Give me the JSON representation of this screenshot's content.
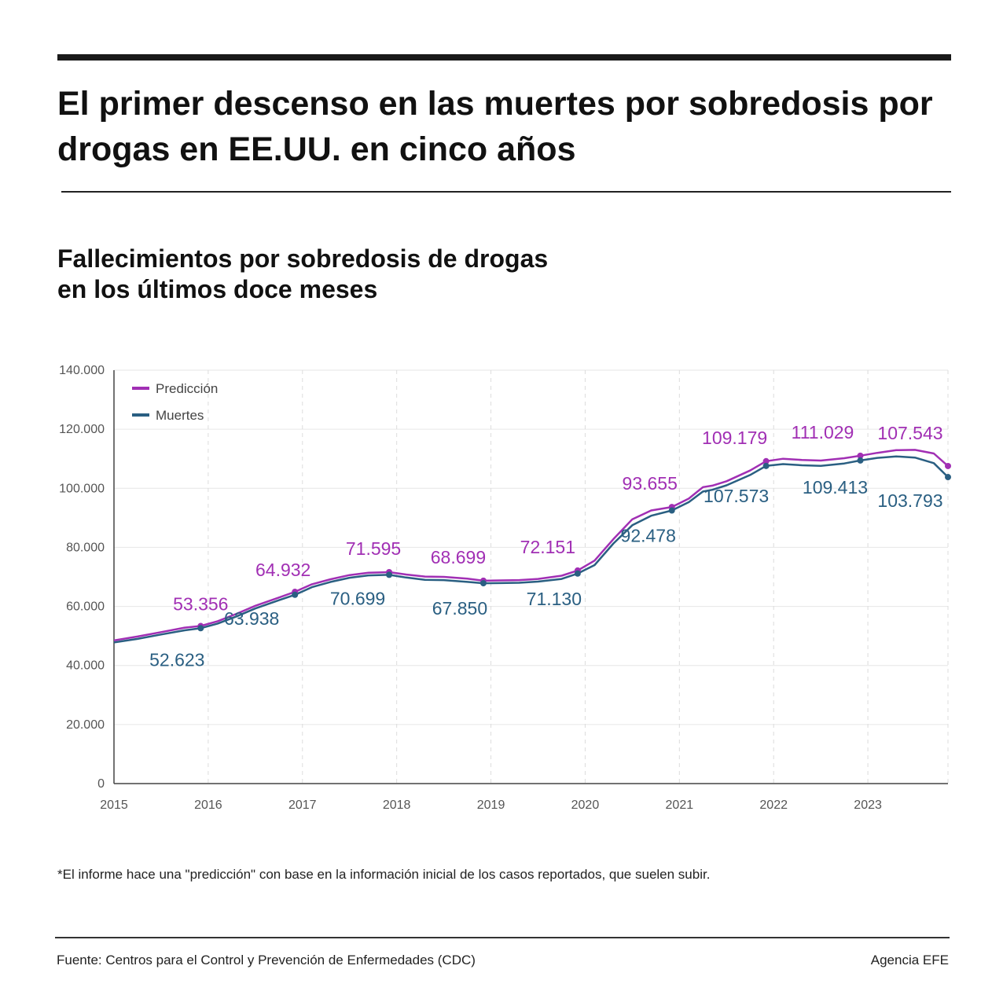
{
  "header": {
    "title": "El primer descenso en las muertes por sobredosis por drogas en EE.UU. en cinco años"
  },
  "chart_title": {
    "line1": "Fallecimientos por sobredosis de drogas",
    "line2": "en los últimos doce meses"
  },
  "chart_data": {
    "type": "line",
    "ylim": [
      0,
      140000
    ],
    "xlim": [
      2015,
      2023.85
    ],
    "y_ticks": [
      0,
      20000,
      40000,
      60000,
      80000,
      100000,
      120000,
      140000
    ],
    "y_tick_labels": [
      "0",
      "20.000",
      "40.000",
      "60.000",
      "80.000",
      "100.000",
      "120.000",
      "140.000"
    ],
    "x_ticks": [
      2015,
      2016,
      2017,
      2018,
      2019,
      2020,
      2021,
      2022,
      2023
    ],
    "x_tick_labels": [
      "2015",
      "2016",
      "2017",
      "2018",
      "2019",
      "2020",
      "2021",
      "2022",
      "2023"
    ],
    "grid": true,
    "legend_position": "top-left",
    "series": [
      {
        "name": "Predicción",
        "color": "#a12fb4",
        "x": [
          2015.0,
          2015.25,
          2015.5,
          2015.75,
          2015.92,
          2016.1,
          2016.3,
          2016.5,
          2016.75,
          2016.92,
          2017.1,
          2017.3,
          2017.5,
          2017.7,
          2017.92,
          2018.1,
          2018.3,
          2018.5,
          2018.75,
          2018.92,
          2019.1,
          2019.3,
          2019.5,
          2019.75,
          2019.92,
          2020.1,
          2020.3,
          2020.5,
          2020.7,
          2020.92,
          2021.1,
          2021.25,
          2021.35,
          2021.5,
          2021.75,
          2021.92,
          2022.1,
          2022.3,
          2022.5,
          2022.75,
          2022.92,
          2023.1,
          2023.3,
          2023.5,
          2023.7,
          2023.85
        ],
        "values": [
          48500,
          49800,
          51300,
          52800,
          53356,
          55000,
          57500,
          60200,
          63000,
          64932,
          67500,
          69200,
          70600,
          71400,
          71595,
          70800,
          70100,
          70000,
          69400,
          68699,
          68800,
          68900,
          69300,
          70400,
          72151,
          75500,
          82800,
          89500,
          92500,
          93655,
          96500,
          100400,
          100900,
          102400,
          106000,
          109179,
          110000,
          109600,
          109400,
          110200,
          111029,
          112000,
          112900,
          113000,
          111800,
          107543
        ]
      },
      {
        "name": "Muertes",
        "color": "#2a5f82",
        "x": [
          2015.0,
          2015.25,
          2015.5,
          2015.75,
          2015.92,
          2016.1,
          2016.3,
          2016.5,
          2016.75,
          2016.92,
          2017.1,
          2017.3,
          2017.5,
          2017.7,
          2017.92,
          2018.1,
          2018.3,
          2018.5,
          2018.75,
          2018.92,
          2019.1,
          2019.3,
          2019.5,
          2019.75,
          2019.92,
          2020.1,
          2020.3,
          2020.5,
          2020.7,
          2020.92,
          2021.1,
          2021.25,
          2021.35,
          2021.5,
          2021.75,
          2021.92,
          2022.1,
          2022.3,
          2022.5,
          2022.75,
          2022.92,
          2023.1,
          2023.3,
          2023.5,
          2023.7,
          2023.85
        ],
        "values": [
          47800,
          49000,
          50500,
          51900,
          52623,
          54200,
          56600,
          59300,
          62100,
          63938,
          66500,
          68300,
          69700,
          70500,
          70699,
          69800,
          69000,
          68900,
          68300,
          67850,
          67900,
          68000,
          68400,
          69300,
          71130,
          74000,
          81300,
          87500,
          90700,
          92478,
          95300,
          98900,
          99500,
          101000,
          104500,
          107573,
          108200,
          107800,
          107600,
          108400,
          109413,
          110300,
          110800,
          110400,
          108500,
          103793
        ]
      }
    ],
    "annotations": {
      "Predicción": [
        {
          "x": 2015.92,
          "y": 53356,
          "label": "53.356"
        },
        {
          "x": 2016.92,
          "y": 64932,
          "label": "64.932"
        },
        {
          "x": 2017.92,
          "y": 71595,
          "label": "71.595"
        },
        {
          "x": 2018.92,
          "y": 68699,
          "label": "68.699"
        },
        {
          "x": 2019.92,
          "y": 72151,
          "label": "72.151"
        },
        {
          "x": 2020.92,
          "y": 93655,
          "label": "93.655"
        },
        {
          "x": 2021.92,
          "y": 109179,
          "label": "109.179"
        },
        {
          "x": 2022.92,
          "y": 111029,
          "label": "111.029"
        },
        {
          "x": 2023.85,
          "y": 107543,
          "label": "107.543"
        }
      ],
      "Muertes": [
        {
          "x": 2015.92,
          "y": 52623,
          "label": "52.623"
        },
        {
          "x": 2016.92,
          "y": 63938,
          "label": "63.938"
        },
        {
          "x": 2017.92,
          "y": 70699,
          "label": "70.699"
        },
        {
          "x": 2018.92,
          "y": 67850,
          "label": "67.850"
        },
        {
          "x": 2019.92,
          "y": 71130,
          "label": "71.130"
        },
        {
          "x": 2020.92,
          "y": 92478,
          "label": "92.478"
        },
        {
          "x": 2021.92,
          "y": 107573,
          "label": "107.573"
        },
        {
          "x": 2022.92,
          "y": 109413,
          "label": "109.413"
        },
        {
          "x": 2023.85,
          "y": 103793,
          "label": "103.793"
        }
      ]
    }
  },
  "footnote": "*El informe hace una \"predicción\" con base en la información inicial de los casos reportados, que suelen subir.",
  "footer": {
    "source": "Fuente: Centros para el Control y Prevención de Enfermedades (CDC)",
    "agency": "Agencia EFE"
  }
}
